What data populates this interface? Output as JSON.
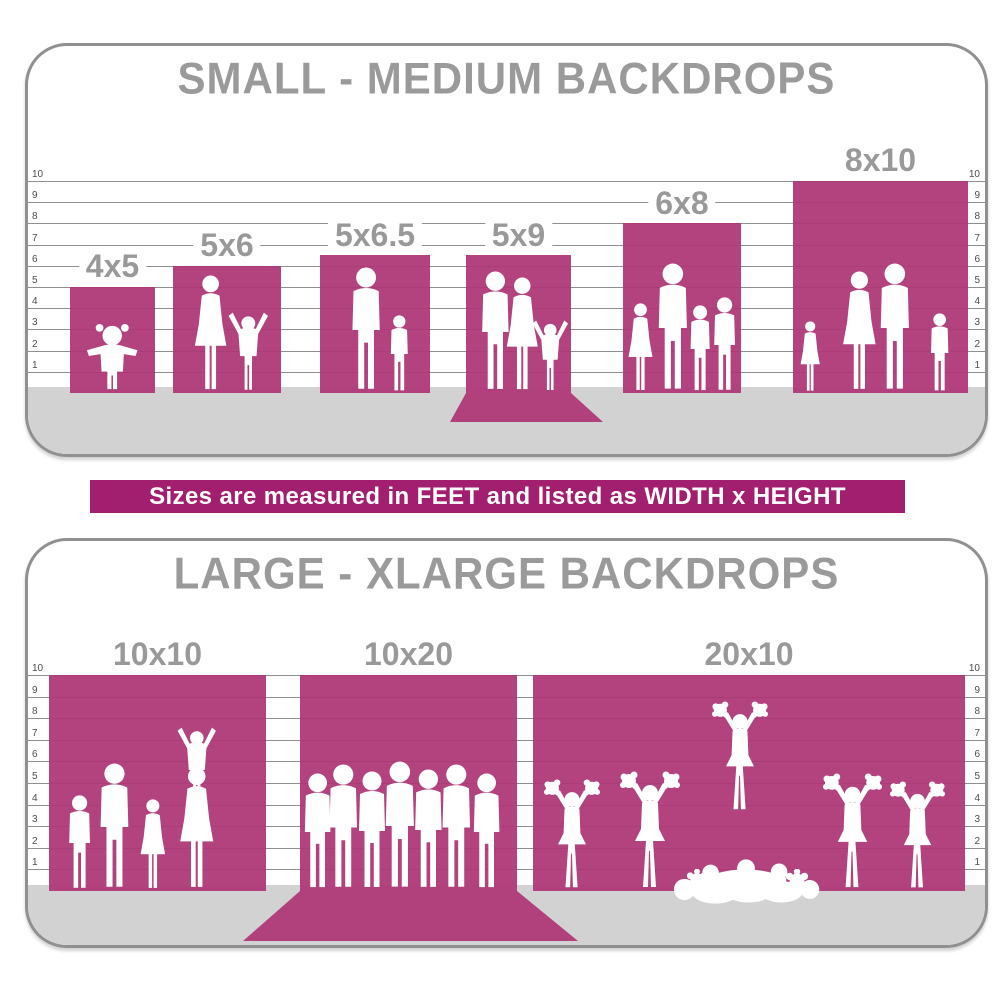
{
  "colors": {
    "backdrop_magenta": "#b2437f",
    "banner_magenta": "#a21e6e",
    "title_gray": "#9a9a9a",
    "label_gray": "#999999",
    "grid_gray": "#8f8f8f",
    "floor_gray": "#d2d2d2",
    "border_gray": "#909090",
    "ruler_text_gray": "#4d4d4d",
    "silhouette_white": "#ffffff"
  },
  "banner": {
    "text": "Sizes are measured in FEET and listed as WIDTH x HEIGHT"
  },
  "panels": [
    {
      "id": "small-medium",
      "title": "SMALL - MEDIUM BACKDROPS",
      "ruler_numbers": [
        "1",
        "2",
        "3",
        "4",
        "5",
        "6",
        "7",
        "8",
        "9",
        "10"
      ],
      "unit": "feet",
      "bars": [
        {
          "label": "4x5",
          "width_ft": 4,
          "height_ft": 5,
          "floor_sweep": false,
          "figures": "toddler girl with pigtails"
        },
        {
          "label": "5x6",
          "width_ft": 5,
          "height_ft": 6,
          "floor_sweep": false,
          "figures": "woman and child with raised arms"
        },
        {
          "label": "5x6.5",
          "width_ft": 5,
          "height_ft": 6.5,
          "floor_sweep": false,
          "figures": "man and boy"
        },
        {
          "label": "5x9",
          "width_ft": 5,
          "height_ft": 9,
          "floor_sweep": true,
          "figures": "couple with child on floor sweep"
        },
        {
          "label": "6x8",
          "width_ft": 6,
          "height_ft": 8,
          "floor_sweep": false,
          "figures": "family of four"
        },
        {
          "label": "8x10",
          "width_ft": 8,
          "height_ft": 10,
          "floor_sweep": false,
          "figures": "family of four with small girl"
        }
      ]
    },
    {
      "id": "large-xlarge",
      "title": "LARGE - XLARGE BACKDROPS",
      "ruler_numbers": [
        "1",
        "2",
        "3",
        "4",
        "5",
        "6",
        "7",
        "8",
        "9",
        "10"
      ],
      "unit": "feet",
      "bars": [
        {
          "label": "10x10",
          "width_ft": 10,
          "height_ft": 10,
          "floor_sweep": false,
          "figures": "family with child on shoulders"
        },
        {
          "label": "10x20",
          "width_ft": 10,
          "height_ft": 20,
          "floor_sweep": true,
          "figures": "group of seven men on floor sweep"
        },
        {
          "label": "20x10",
          "width_ft": 20,
          "height_ft": 10,
          "floor_sweep": false,
          "figures": "cheerleader squad with pyramid"
        }
      ]
    }
  ]
}
